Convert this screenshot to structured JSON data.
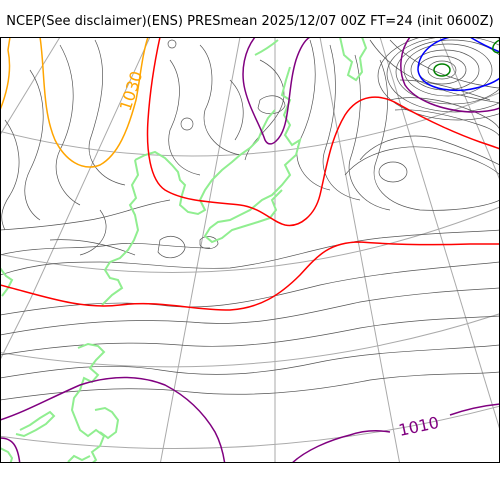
{
  "title": "NCEP(See disclaimer)(ENS) PRESmean 2025/12/07 00Z FT=24 (init 0600Z)",
  "contour_labels": {
    "orange": "1030",
    "purple": "1010"
  },
  "colors": {
    "background": "#ffffff",
    "isobar": "#555555",
    "graticule": "#aaaaaa",
    "coastline": "#90ee90",
    "contour_1030": "#ffa500",
    "contour_1020": "#ff0000",
    "contour_1010": "#800080",
    "contour_1000": "#0000ff",
    "contour_990": "#008000"
  }
}
